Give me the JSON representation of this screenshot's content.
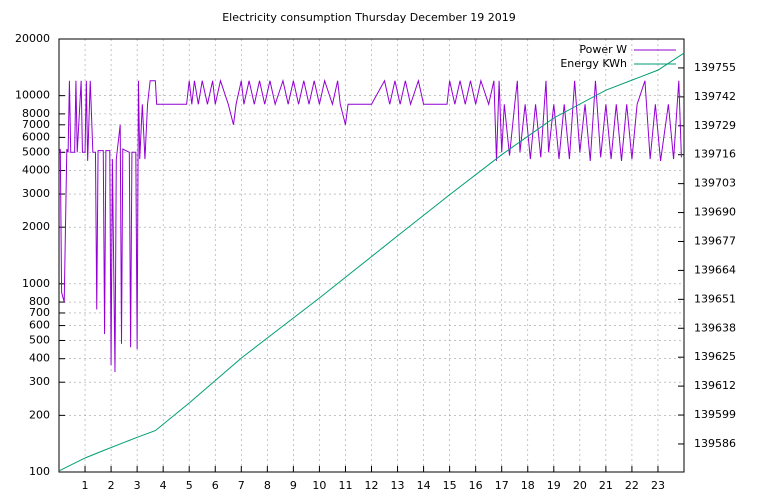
{
  "chart_data": {
    "type": "line",
    "title": "Electricity consumption Thursday December 19 2019",
    "xlim": [
      0,
      24
    ],
    "xticks": [
      1,
      2,
      3,
      4,
      5,
      6,
      7,
      8,
      9,
      10,
      11,
      12,
      13,
      14,
      15,
      16,
      17,
      18,
      19,
      20,
      21,
      22,
      23
    ],
    "ylim": [
      100,
      20000
    ],
    "ylog": true,
    "yticks": [
      100,
      200,
      300,
      400,
      500,
      600,
      700,
      800,
      1000,
      2000,
      3000,
      4000,
      5000,
      6000,
      7000,
      8000,
      10000,
      20000
    ],
    "y2lim": [
      139573.4,
      139768
    ],
    "y2ticks": [
      139586,
      139599,
      139612,
      139625,
      139638,
      139651,
      139664,
      139677,
      139690,
      139703,
      139716,
      139729,
      139742,
      139755
    ],
    "grid": true,
    "legend": "top-right",
    "series": [
      {
        "name": "Power W",
        "color": "#9400d3",
        "x": [
          0,
          0.05,
          0.1,
          0.2,
          0.3,
          0.35,
          0.4,
          0.45,
          0.6,
          0.65,
          0.7,
          0.85,
          0.9,
          1.0,
          1.05,
          1.1,
          1.2,
          1.3,
          1.4,
          1.45,
          1.5,
          1.7,
          1.75,
          1.8,
          1.95,
          2.0,
          2.05,
          2.15,
          2.2,
          2.35,
          2.4,
          2.45,
          2.7,
          2.75,
          2.8,
          2.95,
          3.0,
          3.05,
          3.1,
          3.2,
          3.3,
          3.4,
          3.5,
          3.7,
          3.75,
          4.0,
          4.9,
          5.0,
          5.1,
          5.2,
          5.35,
          5.5,
          5.7,
          5.9,
          6.0,
          6.2,
          6.5,
          6.7,
          6.8,
          7.0,
          7.1,
          7.3,
          7.5,
          7.7,
          7.9,
          8.1,
          8.3,
          8.6,
          8.8,
          9.0,
          9.2,
          9.4,
          9.6,
          9.8,
          10.0,
          10.2,
          10.5,
          10.7,
          10.8,
          11.0,
          11.1,
          12.0,
          12.5,
          12.7,
          12.9,
          13.1,
          13.3,
          13.5,
          13.8,
          14.0,
          14.9,
          15.0,
          15.2,
          15.4,
          15.6,
          15.8,
          16.0,
          16.2,
          16.5,
          16.7,
          16.8,
          16.9,
          17.0,
          17.1,
          17.3,
          17.5,
          17.6,
          17.7,
          17.9,
          18.1,
          18.3,
          18.5,
          18.7,
          18.8,
          19.0,
          19.2,
          19.4,
          19.6,
          19.8,
          20.0,
          20.2,
          20.4,
          20.6,
          20.8,
          21.0,
          21.2,
          21.4,
          21.6,
          21.8,
          22.0,
          22.2,
          22.5,
          22.7,
          22.9,
          23.1,
          23.4,
          23.6,
          23.8,
          23.9
        ],
        "values": [
          5000,
          5200,
          900,
          800,
          5200,
          5000,
          12000,
          5000,
          5000,
          12000,
          5000,
          12000,
          5000,
          5000,
          12000,
          4500,
          12000,
          5000,
          5000,
          730,
          5100,
          5100,
          540,
          5100,
          5100,
          370,
          4600,
          340,
          4600,
          7000,
          480,
          5200,
          5000,
          460,
          5000,
          5000,
          450,
          12000,
          4600,
          9000,
          4600,
          9000,
          12000,
          12000,
          9000,
          9000,
          9000,
          12000,
          9000,
          12000,
          9000,
          12000,
          9000,
          12000,
          9000,
          12000,
          9000,
          7000,
          9000,
          12000,
          9000,
          12000,
          9000,
          12000,
          9000,
          12000,
          9000,
          12000,
          9000,
          12000,
          9000,
          12000,
          9000,
          12000,
          9000,
          12000,
          9000,
          12000,
          9000,
          7000,
          9000,
          9000,
          12000,
          9000,
          12000,
          9000,
          12000,
          9000,
          12000,
          9000,
          9000,
          12000,
          9000,
          12000,
          9000,
          12000,
          9000,
          12000,
          9000,
          12000,
          4500,
          12000,
          5000,
          9000,
          4800,
          9000,
          12000,
          5000,
          9000,
          4600,
          9000,
          4700,
          12000,
          5000,
          9000,
          4600,
          9000,
          4600,
          12000,
          5000,
          9000,
          4500,
          12000,
          4700,
          9000,
          4600,
          9000,
          4500,
          9000,
          4600,
          9000,
          12000,
          4600,
          9000,
          4500,
          9000,
          4600,
          12000,
          4700
        ]
      },
      {
        "name": "Energy KWh",
        "color": "#009e73",
        "axis": "y2",
        "x": [
          0,
          1,
          1.7,
          3,
          3.7,
          5,
          7,
          10,
          13,
          15,
          17,
          19,
          21,
          23,
          24
        ],
        "values": [
          139573.9,
          139579.7,
          139583,
          139589,
          139592,
          139604.4,
          139624.6,
          139651.6,
          139679.5,
          139698,
          139716,
          139732.5,
          139745,
          139754,
          139761.7
        ]
      }
    ]
  }
}
